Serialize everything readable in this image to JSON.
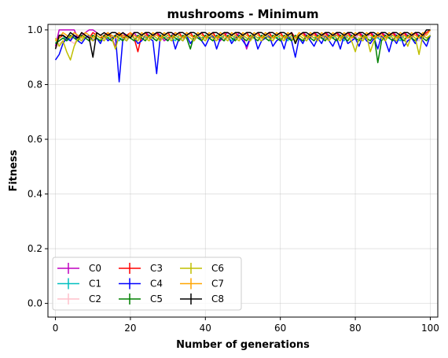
{
  "chart_data": {
    "type": "line",
    "title": "mushrooms - Minimum",
    "xlabel": "Number of generations",
    "ylabel": "Fitness",
    "xlim": [
      -2,
      102
    ],
    "ylim": [
      -0.05,
      1.02
    ],
    "xticks": [
      0,
      20,
      40,
      60,
      80,
      100
    ],
    "yticks": [
      0.0,
      0.2,
      0.4,
      0.6,
      0.8,
      1.0
    ],
    "xtick_labels": [
      "0",
      "20",
      "40",
      "60",
      "80",
      "100"
    ],
    "ytick_labels": [
      "0.0",
      "0.2",
      "0.4",
      "0.6",
      "0.8",
      "1.0"
    ],
    "grid": true,
    "legend_position": "lower-left",
    "legend_columns": 3,
    "x": [
      0,
      1,
      2,
      3,
      4,
      5,
      6,
      7,
      8,
      9,
      10,
      11,
      12,
      13,
      14,
      15,
      16,
      17,
      18,
      19,
      20,
      21,
      22,
      23,
      24,
      25,
      26,
      27,
      28,
      29,
      30,
      31,
      32,
      33,
      34,
      35,
      36,
      37,
      38,
      39,
      40,
      41,
      42,
      43,
      44,
      45,
      46,
      47,
      48,
      49,
      50,
      51,
      52,
      53,
      54,
      55,
      56,
      57,
      58,
      59,
      60,
      61,
      62,
      63,
      64,
      65,
      66,
      67,
      68,
      69,
      70,
      71,
      72,
      73,
      74,
      75,
      76,
      77,
      78,
      79,
      80,
      81,
      82,
      83,
      84,
      85,
      86,
      87,
      88,
      89,
      90,
      91,
      92,
      93,
      94,
      95,
      96,
      97,
      98,
      99,
      100
    ],
    "series": [
      {
        "name": "C0",
        "color": "#bf00bf",
        "values": [
          0.94,
          1.0,
          1.0,
          1.0,
          1.0,
          1.0,
          0.97,
          0.98,
          0.99,
          1.0,
          1.0,
          0.99,
          0.98,
          0.97,
          0.99,
          0.97,
          0.94,
          0.98,
          0.99,
          0.97,
          0.98,
          0.99,
          0.97,
          0.98,
          0.99,
          0.98,
          0.97,
          0.99,
          0.98,
          0.96,
          0.97,
          0.98,
          0.99,
          0.98,
          0.97,
          0.99,
          0.98,
          0.97,
          0.98,
          0.99,
          0.97,
          0.98,
          0.99,
          0.97,
          0.96,
          0.98,
          0.99,
          0.98,
          0.97,
          0.99,
          0.98,
          0.93,
          0.97,
          0.98,
          0.99,
          0.97,
          0.98,
          0.99,
          0.97,
          0.98,
          0.99,
          0.97,
          0.98,
          0.99,
          0.97,
          0.98,
          0.99,
          0.98,
          0.97,
          0.99,
          0.98,
          0.97,
          0.99,
          0.98,
          0.97,
          0.99,
          0.98,
          0.97,
          0.99,
          0.98,
          0.97,
          0.99,
          0.98,
          0.97,
          0.99,
          0.98,
          0.97,
          0.99,
          0.98,
          0.97,
          0.99,
          0.98,
          0.97,
          0.99,
          0.98,
          0.97,
          0.99,
          0.98,
          0.97,
          0.99,
          1.0
        ]
      },
      {
        "name": "C1",
        "color": "#00bfbf",
        "values": [
          0.95,
          0.97,
          0.98,
          0.96,
          0.97,
          0.98,
          0.97,
          0.96,
          0.98,
          0.97,
          0.98,
          0.97,
          0.96,
          0.98,
          0.97,
          0.98,
          0.97,
          0.96,
          0.98,
          0.97,
          0.98,
          0.97,
          0.96,
          0.98,
          0.97,
          0.98,
          0.97,
          0.96,
          0.98,
          0.97,
          0.98,
          0.97,
          0.96,
          0.98,
          0.97,
          0.98,
          0.97,
          0.96,
          0.98,
          0.97,
          0.98,
          0.97,
          0.96,
          0.98,
          0.97,
          0.98,
          0.97,
          0.96,
          0.98,
          0.97,
          0.98,
          0.97,
          0.96,
          0.98,
          0.97,
          0.98,
          0.97,
          0.96,
          0.98,
          0.97,
          0.98,
          0.97,
          0.96,
          0.98,
          0.97,
          0.98,
          0.97,
          0.96,
          0.98,
          0.97,
          0.98,
          0.97,
          0.96,
          0.98,
          0.97,
          0.98,
          0.97,
          0.96,
          0.98,
          0.97,
          0.98,
          0.97,
          0.96,
          0.98,
          0.97,
          0.98,
          0.97,
          0.96,
          0.98,
          0.97,
          0.98,
          0.97,
          0.96,
          0.98,
          0.97,
          0.98,
          0.97,
          0.96,
          0.98,
          0.97,
          0.98
        ]
      },
      {
        "name": "C2",
        "color": "#ffc0cb",
        "values": [
          0.93,
          0.95,
          0.96,
          0.97,
          0.96,
          0.95,
          0.97,
          0.96,
          0.98,
          0.97,
          0.96,
          0.98,
          0.97,
          0.96,
          0.98,
          0.97,
          0.96,
          0.98,
          0.97,
          0.96,
          0.98,
          0.97,
          0.96,
          0.98,
          0.97,
          0.96,
          0.98,
          0.97,
          0.96,
          0.98,
          0.97,
          0.96,
          0.98,
          0.97,
          0.96,
          0.98,
          0.97,
          0.96,
          0.98,
          0.97,
          0.96,
          0.98,
          0.97,
          0.96,
          0.98,
          0.97,
          0.96,
          0.98,
          0.97,
          0.96,
          0.98,
          0.97,
          0.96,
          0.98,
          0.97,
          0.96,
          0.98,
          0.97,
          0.96,
          0.98,
          0.97,
          0.96,
          0.98,
          0.97,
          0.96,
          0.98,
          0.97,
          0.96,
          0.98,
          0.97,
          0.96,
          0.98,
          0.97,
          0.96,
          0.98,
          0.97,
          0.96,
          0.98,
          0.97,
          0.96,
          0.98,
          0.97,
          0.96,
          0.98,
          0.97,
          0.96,
          0.98,
          0.97,
          0.96,
          0.98,
          0.97,
          0.96,
          0.98,
          0.97,
          0.96,
          0.98,
          0.97,
          0.96,
          0.98,
          0.97,
          0.98
        ]
      },
      {
        "name": "C3",
        "color": "#ff0000",
        "values": [
          0.96,
          0.97,
          0.98,
          0.97,
          0.96,
          0.98,
          0.97,
          0.99,
          0.98,
          0.97,
          0.99,
          0.98,
          0.97,
          0.98,
          0.99,
          0.97,
          0.98,
          0.99,
          0.97,
          0.98,
          0.99,
          0.97,
          0.92,
          0.98,
          0.99,
          0.97,
          0.98,
          0.99,
          0.97,
          0.98,
          0.99,
          0.97,
          0.98,
          0.99,
          0.97,
          0.98,
          0.99,
          0.97,
          0.98,
          0.99,
          0.97,
          0.98,
          0.99,
          0.97,
          0.98,
          0.99,
          0.97,
          0.98,
          0.99,
          0.97,
          0.98,
          0.99,
          0.97,
          0.98,
          0.99,
          0.97,
          0.98,
          0.99,
          0.97,
          0.98,
          0.99,
          0.97,
          0.98,
          0.99,
          0.97,
          0.98,
          0.99,
          0.97,
          0.98,
          0.99,
          0.97,
          0.98,
          0.99,
          0.97,
          0.98,
          0.99,
          0.97,
          0.98,
          0.99,
          0.97,
          0.98,
          0.99,
          0.97,
          0.98,
          0.99,
          0.97,
          0.98,
          0.99,
          0.97,
          0.98,
          0.99,
          0.97,
          0.98,
          0.99,
          0.97,
          0.98,
          0.99,
          0.97,
          0.98,
          0.99,
          1.0
        ]
      },
      {
        "name": "C4",
        "color": "#0000ff",
        "values": [
          0.89,
          0.91,
          0.95,
          0.97,
          0.96,
          0.98,
          0.96,
          0.95,
          0.97,
          0.98,
          0.96,
          0.97,
          0.95,
          0.98,
          0.96,
          0.97,
          0.98,
          0.81,
          0.97,
          0.96,
          0.98,
          0.97,
          0.95,
          0.96,
          0.98,
          0.97,
          0.96,
          0.84,
          0.98,
          0.97,
          0.96,
          0.98,
          0.93,
          0.97,
          0.96,
          0.98,
          0.95,
          0.97,
          0.98,
          0.96,
          0.94,
          0.97,
          0.98,
          0.93,
          0.97,
          0.96,
          0.98,
          0.95,
          0.97,
          0.98,
          0.96,
          0.94,
          0.97,
          0.98,
          0.93,
          0.96,
          0.97,
          0.98,
          0.94,
          0.96,
          0.97,
          0.93,
          0.98,
          0.96,
          0.9,
          0.97,
          0.95,
          0.98,
          0.96,
          0.94,
          0.97,
          0.95,
          0.98,
          0.96,
          0.94,
          0.97,
          0.93,
          0.98,
          0.95,
          0.96,
          0.97,
          0.94,
          0.98,
          0.96,
          0.95,
          0.97,
          0.93,
          0.98,
          0.96,
          0.92,
          0.97,
          0.95,
          0.98,
          0.94,
          0.96,
          0.97,
          0.95,
          0.98,
          0.96,
          0.94,
          0.98
        ]
      },
      {
        "name": "C5",
        "color": "#008000",
        "values": [
          0.95,
          0.96,
          0.97,
          0.96,
          0.98,
          0.97,
          0.96,
          0.98,
          0.97,
          0.96,
          0.98,
          0.97,
          0.96,
          0.98,
          0.97,
          0.96,
          0.98,
          0.97,
          0.96,
          0.98,
          0.97,
          0.96,
          0.98,
          0.97,
          0.96,
          0.98,
          0.97,
          0.96,
          0.98,
          0.97,
          0.96,
          0.98,
          0.97,
          0.96,
          0.98,
          0.97,
          0.93,
          0.98,
          0.97,
          0.96,
          0.98,
          0.97,
          0.96,
          0.98,
          0.97,
          0.96,
          0.98,
          0.97,
          0.96,
          0.98,
          0.97,
          0.96,
          0.98,
          0.97,
          0.96,
          0.98,
          0.97,
          0.96,
          0.98,
          0.97,
          0.96,
          0.98,
          0.97,
          0.96,
          0.98,
          0.97,
          0.96,
          0.98,
          0.97,
          0.96,
          0.98,
          0.97,
          0.96,
          0.98,
          0.97,
          0.96,
          0.98,
          0.97,
          0.96,
          0.98,
          0.97,
          0.96,
          0.98,
          0.97,
          0.96,
          0.98,
          0.88,
          0.96,
          0.98,
          0.97,
          0.96,
          0.98,
          0.97,
          0.96,
          0.98,
          0.97,
          0.96,
          0.98,
          0.97,
          0.96,
          0.98
        ]
      },
      {
        "name": "C6",
        "color": "#bfbf00",
        "values": [
          0.97,
          0.94,
          0.96,
          0.92,
          0.89,
          0.94,
          0.97,
          0.96,
          0.98,
          0.97,
          0.96,
          0.98,
          0.97,
          0.96,
          0.98,
          0.97,
          0.93,
          0.98,
          0.97,
          0.96,
          0.98,
          0.97,
          0.96,
          0.98,
          0.97,
          0.96,
          0.98,
          0.97,
          0.96,
          0.98,
          0.97,
          0.96,
          0.98,
          0.97,
          0.96,
          0.98,
          0.97,
          0.96,
          0.98,
          0.97,
          0.96,
          0.98,
          0.97,
          0.96,
          0.98,
          0.97,
          0.96,
          0.98,
          0.97,
          0.96,
          0.98,
          0.97,
          0.96,
          0.98,
          0.97,
          0.96,
          0.98,
          0.97,
          0.96,
          0.98,
          0.97,
          0.96,
          0.98,
          0.97,
          0.96,
          0.98,
          0.97,
          0.96,
          0.98,
          0.97,
          0.96,
          0.98,
          0.97,
          0.96,
          0.98,
          0.97,
          0.96,
          0.98,
          0.97,
          0.96,
          0.92,
          0.97,
          0.96,
          0.98,
          0.92,
          0.96,
          0.98,
          0.97,
          0.96,
          0.98,
          0.97,
          0.96,
          0.98,
          0.97,
          0.94,
          0.98,
          0.97,
          0.91,
          0.98,
          0.97,
          0.98
        ]
      },
      {
        "name": "C7",
        "color": "#ffa500",
        "values": [
          0.96,
          0.97,
          0.99,
          0.98,
          0.97,
          0.99,
          0.98,
          0.97,
          0.99,
          0.98,
          0.97,
          0.99,
          0.98,
          0.97,
          0.99,
          0.98,
          0.97,
          0.99,
          0.98,
          0.97,
          0.99,
          0.98,
          0.97,
          0.99,
          0.98,
          0.97,
          0.99,
          0.98,
          0.97,
          0.99,
          0.98,
          0.97,
          0.99,
          0.98,
          0.97,
          0.99,
          0.98,
          0.97,
          0.99,
          0.98,
          0.97,
          0.99,
          0.98,
          0.97,
          0.99,
          0.98,
          0.97,
          0.99,
          0.98,
          0.97,
          0.99,
          0.98,
          0.97,
          0.99,
          0.98,
          0.97,
          0.99,
          0.98,
          0.97,
          0.99,
          0.98,
          0.97,
          0.99,
          0.98,
          0.97,
          0.99,
          0.98,
          0.97,
          0.99,
          0.98,
          0.97,
          0.99,
          0.98,
          0.97,
          0.99,
          0.98,
          0.97,
          0.99,
          0.98,
          0.97,
          0.99,
          0.98,
          0.97,
          0.99,
          0.98,
          0.97,
          0.99,
          0.98,
          0.97,
          0.99,
          0.98,
          0.97,
          0.99,
          0.98,
          0.97,
          0.99,
          0.98,
          0.97,
          0.99,
          0.98,
          1.0
        ]
      },
      {
        "name": "C8",
        "color": "#000000",
        "values": [
          0.93,
          0.98,
          0.98,
          0.97,
          0.99,
          0.98,
          0.97,
          0.99,
          0.98,
          0.97,
          0.9,
          0.99,
          0.98,
          0.99,
          0.98,
          0.99,
          0.99,
          0.98,
          0.99,
          0.98,
          0.97,
          0.99,
          0.99,
          0.98,
          0.99,
          0.99,
          0.98,
          0.99,
          0.99,
          0.98,
          0.99,
          0.99,
          0.98,
          0.99,
          0.99,
          0.98,
          0.99,
          0.99,
          0.98,
          0.99,
          0.99,
          0.98,
          0.99,
          0.99,
          0.98,
          0.99,
          0.99,
          0.98,
          0.99,
          0.99,
          0.98,
          0.99,
          0.99,
          0.98,
          0.99,
          0.99,
          0.98,
          0.99,
          0.99,
          0.98,
          0.99,
          0.99,
          0.98,
          0.99,
          0.95,
          0.98,
          0.99,
          0.99,
          0.98,
          0.99,
          0.99,
          0.98,
          0.99,
          0.99,
          0.98,
          0.99,
          0.99,
          0.98,
          0.99,
          0.99,
          0.98,
          0.99,
          0.99,
          0.98,
          0.99,
          0.99,
          0.98,
          0.99,
          0.99,
          0.98,
          0.99,
          0.99,
          0.98,
          0.99,
          0.99,
          0.98,
          0.99,
          0.99,
          0.98,
          1.0,
          1.0
        ]
      }
    ]
  }
}
